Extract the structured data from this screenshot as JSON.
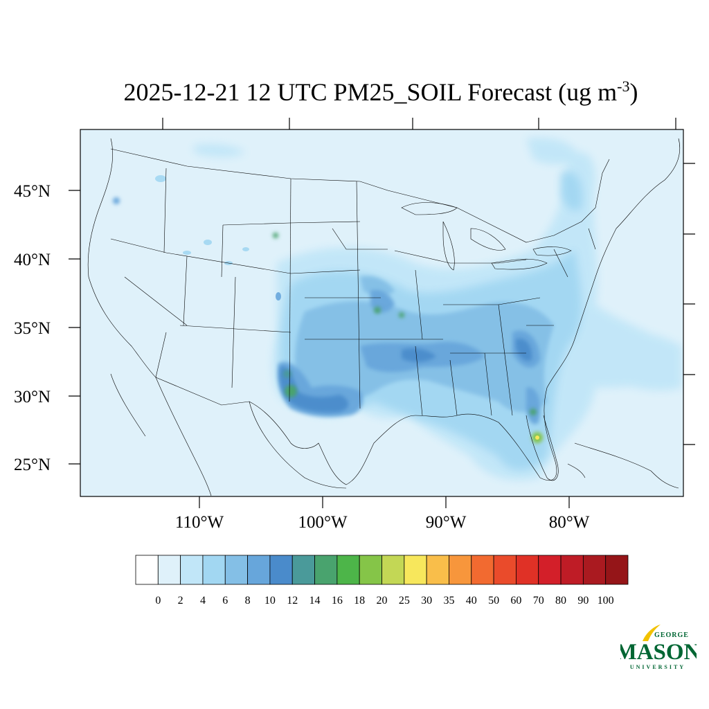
{
  "title": {
    "main": "2025-12-21 12 UTC PM25_SOIL Forecast (ug m",
    "sup": "-3",
    "close": ")"
  },
  "map": {
    "background_color": "#dff1fa",
    "lat_labels": [
      "45°N",
      "40°N",
      "35°N",
      "30°N",
      "25°N"
    ],
    "lon_labels": [
      "110°W",
      "100°W",
      "90°W",
      "80°W"
    ]
  },
  "colorbar": {
    "colors": [
      "#ffffff",
      "#dff1fa",
      "#c1e6f8",
      "#a2d7f2",
      "#84bfe6",
      "#67a6db",
      "#4a8bcb",
      "#4a9a9a",
      "#49a36e",
      "#4db549",
      "#85c548",
      "#c3d755",
      "#f7e75c",
      "#f9be4a",
      "#f7963c",
      "#f26a30",
      "#ea4b2b",
      "#e03126",
      "#d31f29",
      "#bf1c26",
      "#aa1a20",
      "#951518"
    ],
    "labels": [
      "0",
      "2",
      "4",
      "6",
      "8",
      "10",
      "12",
      "14",
      "16",
      "18",
      "20",
      "25",
      "30",
      "35",
      "40",
      "50",
      "60",
      "70",
      "80",
      "90",
      "100"
    ]
  },
  "logo": {
    "top": "GEORGE",
    "main": "MASON",
    "bottom": "UNIVERSITY"
  }
}
